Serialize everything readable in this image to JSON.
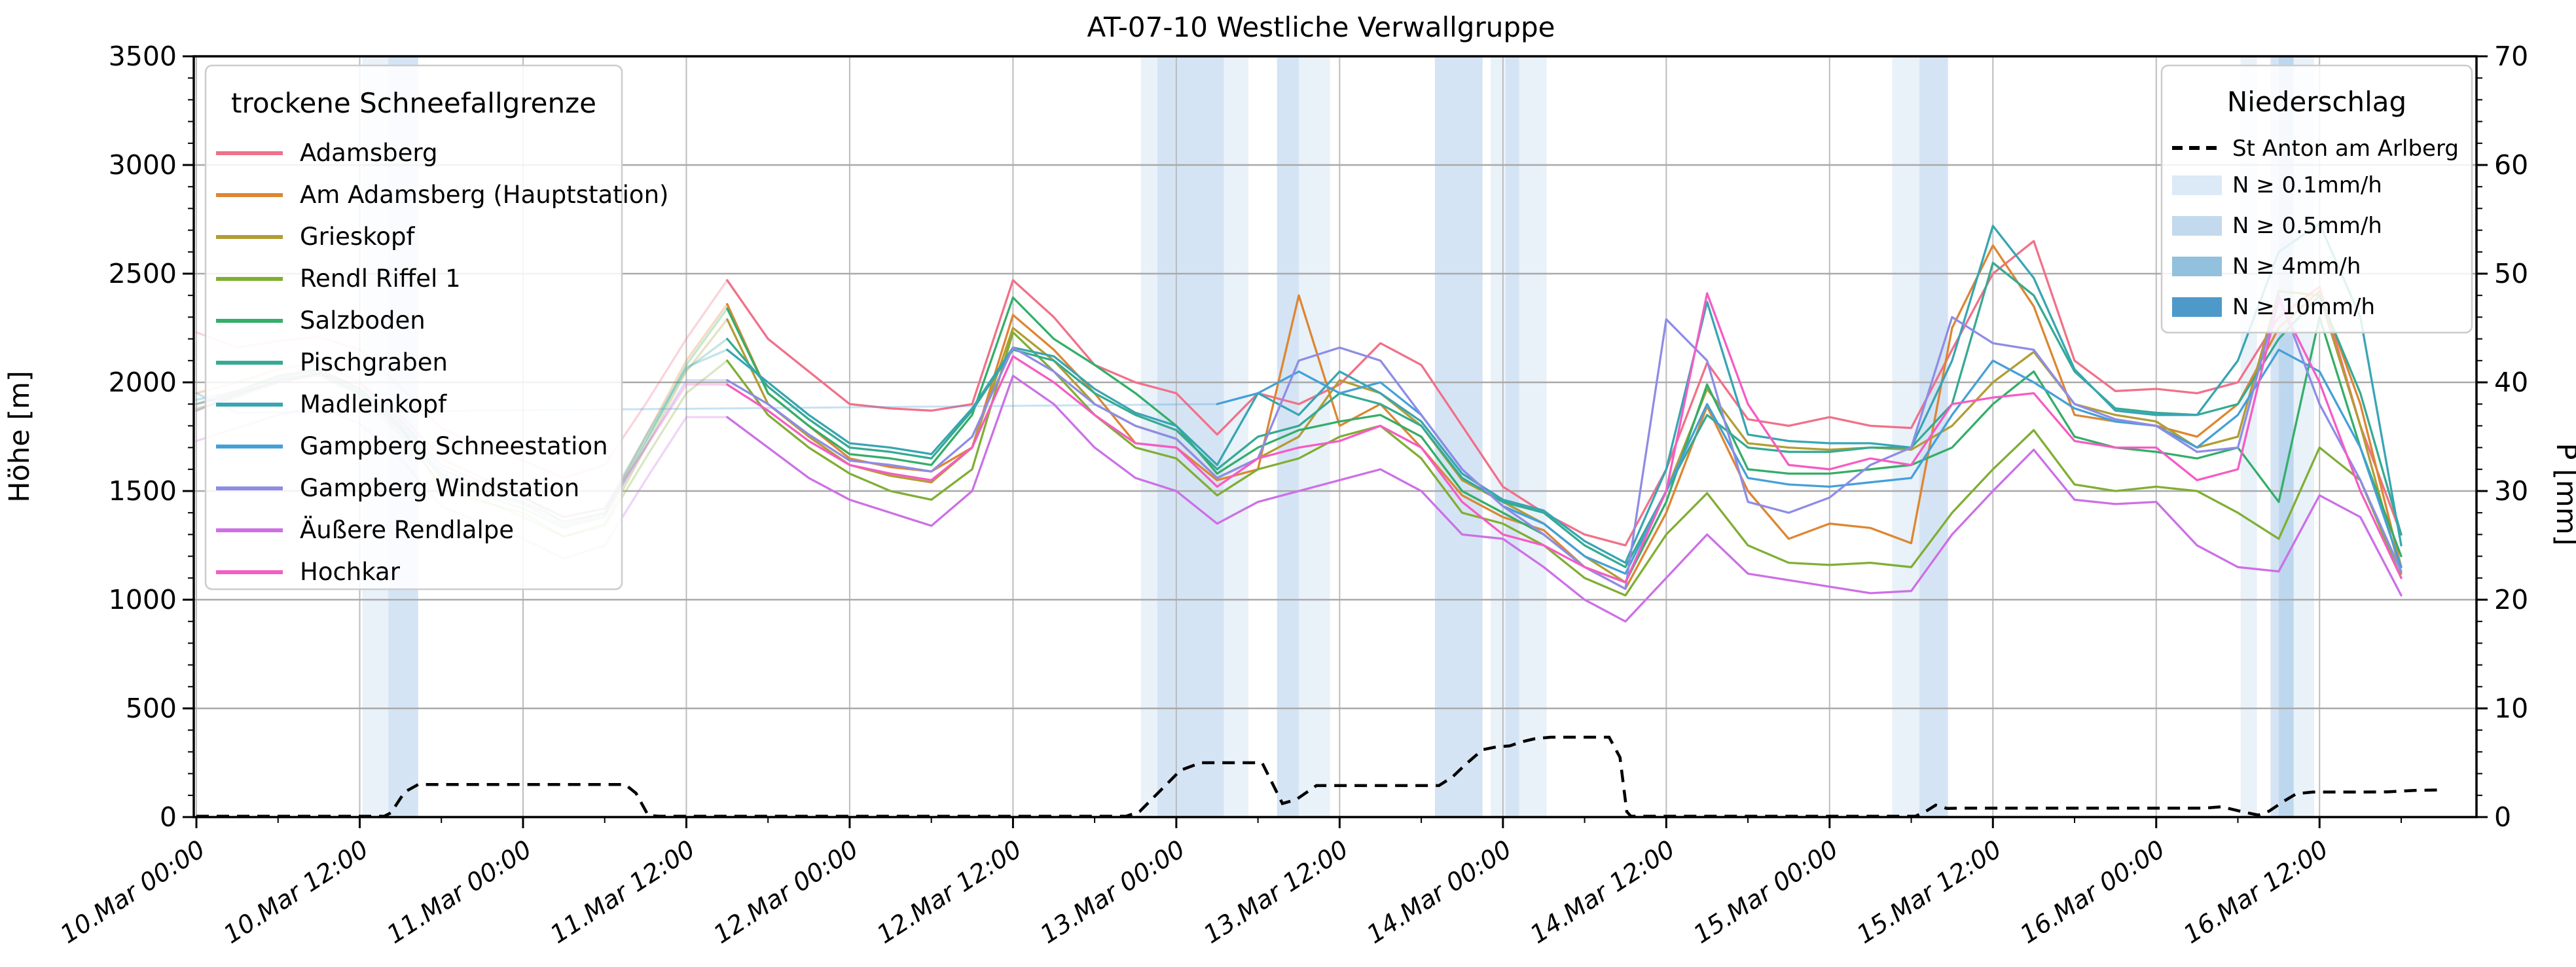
{
  "title": "AT-07-10 Westliche Verwallgruppe",
  "axes": {
    "y_left": {
      "label": "Höhe [m]",
      "min": 0,
      "max": 3500,
      "tick_step": 500,
      "ticks": [
        0,
        500,
        1000,
        1500,
        2000,
        2500,
        3000,
        3500
      ],
      "minor_step": 100
    },
    "y_right": {
      "label": "P [mm]",
      "min": 0,
      "max": 70,
      "tick_step": 10,
      "ticks": [
        0,
        10,
        20,
        30,
        40,
        50,
        60,
        70
      ],
      "minor_step": 2
    },
    "x": {
      "tick_labels": [
        "10.Mar 00:00",
        "10.Mar 12:00",
        "11.Mar 00:00",
        "11.Mar 12:00",
        "12.Mar 00:00",
        "12.Mar 12:00",
        "13.Mar 00:00",
        "13.Mar 12:00",
        "14.Mar 00:00",
        "14.Mar 12:00",
        "15.Mar 00:00",
        "15.Mar 12:00",
        "16.Mar 00:00",
        "16.Mar 12:00"
      ],
      "tick_hours": [
        0,
        12,
        24,
        36,
        48,
        60,
        72,
        84,
        96,
        108,
        120,
        132,
        144,
        156
      ],
      "minor_step_hours": 6
    }
  },
  "legend_snowline": {
    "title": "trockene Schneefallgrenze",
    "entries": [
      {
        "label": "Adamsberg",
        "color": "#f07189"
      },
      {
        "label": "Am Adamsberg (Hauptstation)",
        "color": "#dd8633"
      },
      {
        "label": "Grieskopf",
        "color": "#b29d33"
      },
      {
        "label": "Rendl Riffel 1",
        "color": "#80ae34"
      },
      {
        "label": "Salzboden",
        "color": "#34ae68"
      },
      {
        "label": "Pischgraben",
        "color": "#36aa92"
      },
      {
        "label": "Madleinkopf",
        "color": "#38a5b2"
      },
      {
        "label": "Gampberg Schneestation",
        "color": "#45a0d8"
      },
      {
        "label": "Gampberg Windstation",
        "color": "#8e8ce6"
      },
      {
        "label": "Äußere Rendlalpe",
        "color": "#cc70e6"
      },
      {
        "label": "Hochkar",
        "color": "#f55cc4"
      }
    ]
  },
  "legend_precip": {
    "title": "Niederschlag",
    "line_entry": {
      "label": "St Anton am Arlberg",
      "color": "#000000",
      "dashed": true
    },
    "band_entries": [
      {
        "label": "N ≥ 0.1mm/h",
        "color": "#dce9f6",
        "level": "0.1"
      },
      {
        "label": "N ≥ 0.5mm/h",
        "color": "#c3d9ee",
        "level": "0.5"
      },
      {
        "label": "N ≥ 4mm/h",
        "color": "#92c1de",
        "level": "4"
      },
      {
        "label": "N ≥ 10mm/h",
        "color": "#4d9aca",
        "level": "10"
      }
    ]
  },
  "chart_data": {
    "type": "line",
    "title": "AT-07-10 Westliche Verwallgruppe",
    "xlabel": "",
    "ylabel": "Höhe [m]",
    "ylabel_right": "P [mm]",
    "ylim_left": [
      0,
      3500
    ],
    "ylim_right_mm": [
      0,
      70
    ],
    "xlim_hours": [
      -0.2,
      167.5
    ],
    "x_origin_label": "10.Mar 00:00",
    "grid": true,
    "faint_until_hour": 39,
    "faint_opacity": 0.3,
    "x_hours": [
      0,
      3,
      6,
      9,
      12,
      15,
      18,
      21,
      24,
      27,
      30,
      33,
      36,
      39,
      42,
      45,
      48,
      51,
      54,
      57,
      60,
      63,
      66,
      69,
      72,
      75,
      78,
      81,
      84,
      87,
      90,
      93,
      96,
      99,
      102,
      105,
      108,
      111,
      114,
      117,
      120,
      123,
      126,
      129,
      132,
      135,
      138,
      141,
      144,
      147,
      150,
      153,
      156,
      159,
      162
    ],
    "series": [
      {
        "name": "Adamsberg",
        "color": "#f07189",
        "values": [
          2230,
          2160,
          2190,
          2210,
          2150,
          1980,
          1790,
          1700,
          1640,
          1560,
          1620,
          1900,
          2200,
          2470,
          2200,
          2050,
          1900,
          1880,
          1870,
          1900,
          2470,
          2300,
          2080,
          2000,
          1950,
          1760,
          1950,
          1900,
          1990,
          2180,
          2080,
          1800,
          1520,
          1400,
          1300,
          1250,
          1600,
          2090,
          1830,
          1800,
          1840,
          1800,
          1790,
          2150,
          2500,
          2650,
          2100,
          1960,
          1970,
          1950,
          2000,
          2300,
          2440,
          1800,
          1300
        ]
      },
      {
        "name": "Am Adamsberg (Hauptstation)",
        "color": "#dd8633",
        "values": [
          1950,
          2000,
          2060,
          2090,
          2000,
          1850,
          1650,
          1560,
          1480,
          1350,
          1400,
          1750,
          2100,
          2360,
          1950,
          1800,
          1650,
          1610,
          1590,
          1700,
          2310,
          2150,
          1950,
          1720,
          1700,
          1550,
          1600,
          2400,
          1800,
          1900,
          1700,
          1480,
          1380,
          1320,
          1150,
          1050,
          1400,
          1890,
          1500,
          1280,
          1350,
          1330,
          1260,
          2250,
          2630,
          2350,
          1850,
          1820,
          1800,
          1750,
          1900,
          2250,
          2420,
          1900,
          1150
        ]
      },
      {
        "name": "Grieskopf",
        "color": "#b29d33",
        "values": [
          1900,
          1960,
          2030,
          2060,
          1970,
          1800,
          1510,
          1450,
          1400,
          1290,
          1350,
          1700,
          2050,
          2290,
          1900,
          1750,
          1620,
          1570,
          1540,
          1700,
          2250,
          2100,
          1900,
          1800,
          1740,
          1560,
          1650,
          1750,
          2010,
          1950,
          1800,
          1550,
          1450,
          1350,
          1200,
          1080,
          1500,
          1970,
          1720,
          1700,
          1690,
          1700,
          1690,
          1800,
          2000,
          2140,
          1900,
          1850,
          1820,
          1700,
          1750,
          2420,
          2400,
          1800,
          1120
        ]
      },
      {
        "name": "Rendl Riffel 1",
        "color": "#80ae34",
        "values": [
          1880,
          1930,
          2000,
          2030,
          1940,
          1760,
          1530,
          1460,
          1380,
          1290,
          1340,
          1650,
          1950,
          2100,
          1850,
          1700,
          1580,
          1500,
          1460,
          1600,
          2230,
          2050,
          1850,
          1700,
          1650,
          1480,
          1600,
          1650,
          1750,
          1800,
          1650,
          1400,
          1350,
          1250,
          1100,
          1020,
          1300,
          1490,
          1250,
          1170,
          1160,
          1170,
          1150,
          1400,
          1600,
          1780,
          1530,
          1500,
          1520,
          1500,
          1400,
          1280,
          1700,
          1550,
          1100
        ]
      },
      {
        "name": "Salzboden",
        "color": "#34ae68",
        "values": [
          1870,
          1940,
          2010,
          2040,
          1950,
          1780,
          1560,
          1480,
          1420,
          1330,
          1380,
          1720,
          2080,
          2340,
          1950,
          1800,
          1670,
          1650,
          1620,
          1850,
          2390,
          2200,
          2080,
          1950,
          1800,
          1580,
          1700,
          1780,
          1820,
          1850,
          1750,
          1500,
          1400,
          1300,
          1150,
          1080,
          1450,
          1990,
          1600,
          1580,
          1580,
          1600,
          1620,
          1700,
          1900,
          2050,
          1750,
          1700,
          1680,
          1650,
          1700,
          1450,
          2300,
          1700,
          1200
        ]
      },
      {
        "name": "Pischgraben",
        "color": "#36aa92",
        "values": [
          1900,
          1950,
          2020,
          2050,
          1960,
          1800,
          1580,
          1500,
          1450,
          1360,
          1400,
          1730,
          2060,
          2200,
          1980,
          1830,
          1700,
          1680,
          1650,
          1870,
          2150,
          2100,
          1950,
          1850,
          1780,
          1600,
          1750,
          1800,
          1950,
          1900,
          1800,
          1560,
          1450,
          1400,
          1250,
          1150,
          1500,
          1850,
          1700,
          1680,
          1680,
          1700,
          1700,
          1900,
          2550,
          2400,
          2050,
          1880,
          1860,
          1850,
          1900,
          2200,
          2400,
          1950,
          1300
        ]
      },
      {
        "name": "Madleinkopf",
        "color": "#38a5b2",
        "values": [
          1920,
          1960,
          2030,
          2060,
          1970,
          1820,
          1600,
          1520,
          1470,
          1380,
          1420,
          1750,
          2070,
          2150,
          2000,
          1850,
          1720,
          1700,
          1670,
          1880,
          2160,
          2120,
          1970,
          1860,
          1800,
          1620,
          1950,
          1850,
          2050,
          1950,
          1820,
          1580,
          1460,
          1410,
          1270,
          1170,
          1600,
          2370,
          1760,
          1730,
          1720,
          1720,
          1700,
          2100,
          2720,
          2480,
          2060,
          1870,
          1850,
          1850,
          2100,
          2600,
          2730,
          2300,
          1250
        ]
      },
      {
        "name": "Gampberg Schneestation",
        "color": "#45a0d8",
        "values": [
          1950,
          1860,
          null,
          null,
          null,
          null,
          null,
          null,
          null,
          null,
          null,
          null,
          null,
          null,
          null,
          null,
          null,
          null,
          null,
          null,
          null,
          null,
          null,
          null,
          null,
          1900,
          1950,
          2050,
          1950,
          2000,
          1850,
          1600,
          1430,
          1350,
          1200,
          1120,
          1500,
          1900,
          1560,
          1530,
          1520,
          1540,
          1560,
          1850,
          2100,
          2000,
          1880,
          1820,
          1800,
          1700,
          1850,
          2150,
          2050,
          1700,
          1150
        ]
      },
      {
        "name": "Gampberg Windstation",
        "color": "#8e8ce6",
        "values": [
          1900,
          1940,
          2010,
          2040,
          1950,
          1790,
          1570,
          1490,
          1440,
          1340,
          1390,
          1700,
          2010,
          2010,
          1900,
          1760,
          1640,
          1620,
          1590,
          1750,
          2160,
          2050,
          1900,
          1800,
          1740,
          1560,
          1650,
          2100,
          2160,
          2100,
          1850,
          1600,
          1430,
          1300,
          1150,
          1050,
          2290,
          2100,
          1450,
          1400,
          1470,
          1620,
          1700,
          2300,
          2180,
          2150,
          1900,
          1830,
          1800,
          1680,
          1700,
          2400,
          1900,
          1550,
          1130
        ]
      },
      {
        "name": "Äußere Rendlalpe",
        "color": "#cc70e6",
        "values": [
          1730,
          1790,
          1850,
          1890,
          1810,
          1650,
          1430,
          1350,
          1280,
          1190,
          1250,
          1550,
          1840,
          1840,
          1700,
          1560,
          1460,
          1400,
          1340,
          1500,
          2030,
          1900,
          1700,
          1560,
          1500,
          1350,
          1450,
          1500,
          1550,
          1600,
          1500,
          1300,
          1280,
          1150,
          1000,
          900,
          1100,
          1300,
          1120,
          1090,
          1060,
          1030,
          1040,
          1300,
          1500,
          1690,
          1460,
          1440,
          1450,
          1250,
          1150,
          1130,
          1480,
          1380,
          1020
        ]
      },
      {
        "name": "Hochkar",
        "color": "#f55cc4",
        "values": [
          1870,
          1950,
          2000,
          2040,
          1990,
          1830,
          1620,
          1540,
          1470,
          1380,
          1420,
          1700,
          1990,
          1990,
          1870,
          1730,
          1620,
          1580,
          1550,
          1700,
          2120,
          2000,
          1850,
          1720,
          1700,
          1520,
          1650,
          1700,
          1730,
          1800,
          1700,
          1450,
          1300,
          1250,
          1150,
          1080,
          1500,
          2410,
          1900,
          1620,
          1600,
          1650,
          1620,
          1900,
          1930,
          1950,
          1730,
          1700,
          1700,
          1550,
          1600,
          2380,
          2000,
          1500,
          1100
        ]
      }
    ],
    "precip_line_st_anton_mm": [
      [
        0,
        0.07
      ],
      [
        13.8,
        0.07
      ],
      [
        14.3,
        0.4
      ],
      [
        15.3,
        2.3
      ],
      [
        16.3,
        3.0
      ],
      [
        31.5,
        3.0
      ],
      [
        32.3,
        2.2
      ],
      [
        33.2,
        0.15
      ],
      [
        34,
        0.07
      ],
      [
        68.3,
        0.07
      ],
      [
        69.3,
        0.5
      ],
      [
        70.8,
        2.4
      ],
      [
        72.3,
        4.3
      ],
      [
        73.8,
        5.0
      ],
      [
        78.3,
        5.0
      ],
      [
        79.3,
        2.5
      ],
      [
        79.8,
        1.25
      ],
      [
        80.8,
        1.6
      ],
      [
        82.3,
        2.9
      ],
      [
        91.3,
        2.9
      ],
      [
        92.3,
        3.7
      ],
      [
        93.3,
        4.9
      ],
      [
        94.5,
        6.2
      ],
      [
        95.5,
        6.45
      ],
      [
        96.5,
        6.55
      ],
      [
        97.3,
        6.9
      ],
      [
        98.3,
        7.2
      ],
      [
        99.5,
        7.35
      ],
      [
        103.8,
        7.35
      ],
      [
        104.6,
        5.5
      ],
      [
        105.1,
        0.5
      ],
      [
        105.4,
        0.07
      ],
      [
        126.3,
        0.07
      ],
      [
        127.1,
        0.55
      ],
      [
        127.8,
        1.1
      ],
      [
        128.6,
        0.8
      ],
      [
        130,
        0.82
      ],
      [
        147.5,
        0.82
      ],
      [
        148.8,
        0.95
      ],
      [
        150.3,
        0.5
      ],
      [
        151.5,
        0.18
      ],
      [
        152.3,
        0.55
      ],
      [
        153.3,
        1.4
      ],
      [
        154.3,
        2.15
      ],
      [
        155.5,
        2.3
      ],
      [
        159,
        2.3
      ],
      [
        161,
        2.32
      ],
      [
        163,
        2.45
      ],
      [
        165,
        2.5
      ]
    ],
    "precip_bands": [
      {
        "from_hour": 12.2,
        "to_hour": 14.1,
        "level": "0.1"
      },
      {
        "from_hour": 14.1,
        "to_hour": 16.3,
        "level": "0.5"
      },
      {
        "from_hour": 69.4,
        "to_hour": 70.6,
        "level": "0.1"
      },
      {
        "from_hour": 70.6,
        "to_hour": 75.5,
        "level": "0.5"
      },
      {
        "from_hour": 75.5,
        "to_hour": 77.3,
        "level": "0.1"
      },
      {
        "from_hour": 79.4,
        "to_hour": 81.0,
        "level": "0.5"
      },
      {
        "from_hour": 81.0,
        "to_hour": 83.3,
        "level": "0.1"
      },
      {
        "from_hour": 91.0,
        "to_hour": 94.5,
        "level": "0.5"
      },
      {
        "from_hour": 95.1,
        "to_hour": 96.2,
        "level": "0.1"
      },
      {
        "from_hour": 96.2,
        "to_hour": 97.2,
        "level": "0.5"
      },
      {
        "from_hour": 97.2,
        "to_hour": 99.2,
        "level": "0.1"
      },
      {
        "from_hour": 124.6,
        "to_hour": 126.6,
        "level": "0.1"
      },
      {
        "from_hour": 126.6,
        "to_hour": 128.7,
        "level": "0.5"
      },
      {
        "from_hour": 150.2,
        "to_hour": 151.4,
        "level": "0.1"
      },
      {
        "from_hour": 152.4,
        "to_hour": 153.0,
        "level": "0.5"
      },
      {
        "from_hour": 153.0,
        "to_hour": 154.1,
        "level": "4"
      },
      {
        "from_hour": 154.1,
        "to_hour": 155.6,
        "level": "0.1"
      }
    ],
    "band_fill_colors": {
      "0.1": "#e9f1f9",
      "0.5": "#d5e4f4",
      "4": "#bdd7ee",
      "10": "#7fb8dc"
    }
  }
}
